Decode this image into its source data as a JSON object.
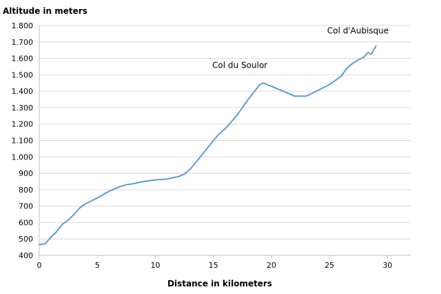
{
  "chart_data": {
    "type": "line",
    "title": "",
    "ylabel": "Altitude in meters",
    "xlabel": "Distance in kilometers",
    "xlim": [
      0,
      32
    ],
    "ylim": [
      400,
      1800
    ],
    "x_ticks": [
      0,
      5,
      10,
      15,
      20,
      25,
      30
    ],
    "x_tick_labels": [
      "0",
      "5",
      "10",
      "15",
      "20",
      "25",
      "30"
    ],
    "y_ticks": [
      400,
      500,
      600,
      700,
      800,
      900,
      1000,
      1100,
      1200,
      1300,
      1400,
      1500,
      1600,
      1700,
      1800
    ],
    "y_tick_labels": [
      "400",
      "500",
      "600",
      "700",
      "800",
      "900",
      "1.000",
      "1.100",
      "1.200",
      "1.300",
      "1.400",
      "1.500",
      "1.600",
      "1.700",
      "1.800"
    ],
    "grid": "horizontal",
    "legend": "none",
    "series_color": "#5b9bd5",
    "series": [
      {
        "x": [
          0,
          0.5,
          1.0,
          1.5,
          2.0,
          2.5,
          3.0,
          3.5,
          4.0,
          5.0,
          6.0,
          7.0,
          7.5,
          8.0,
          9.0,
          10.0,
          11.0,
          12.0,
          12.5,
          13.0,
          14.0,
          15.0,
          15.5,
          16.0,
          17.0,
          18.0,
          19.0,
          19.3,
          20.0,
          21.0,
          22.0,
          23.0,
          24.0,
          25.0,
          26.0,
          26.5,
          27.0,
          27.5,
          28.0,
          28.3,
          28.6,
          28.8,
          29.0
        ],
        "values": [
          465,
          470,
          510,
          545,
          590,
          615,
          650,
          690,
          715,
          750,
          790,
          820,
          830,
          835,
          850,
          860,
          865,
          880,
          895,
          925,
          1010,
          1100,
          1140,
          1170,
          1250,
          1350,
          1440,
          1450,
          1430,
          1400,
          1370,
          1370,
          1405,
          1440,
          1490,
          1540,
          1570,
          1590,
          1610,
          1635,
          1625,
          1650,
          1675
        ]
      }
    ],
    "annotations": [
      {
        "text": "Col du Soulor",
        "x": 19.3,
        "y": 1450
      },
      {
        "text": "Col d'Aubisque",
        "x": 29.0,
        "y": 1675
      }
    ]
  }
}
